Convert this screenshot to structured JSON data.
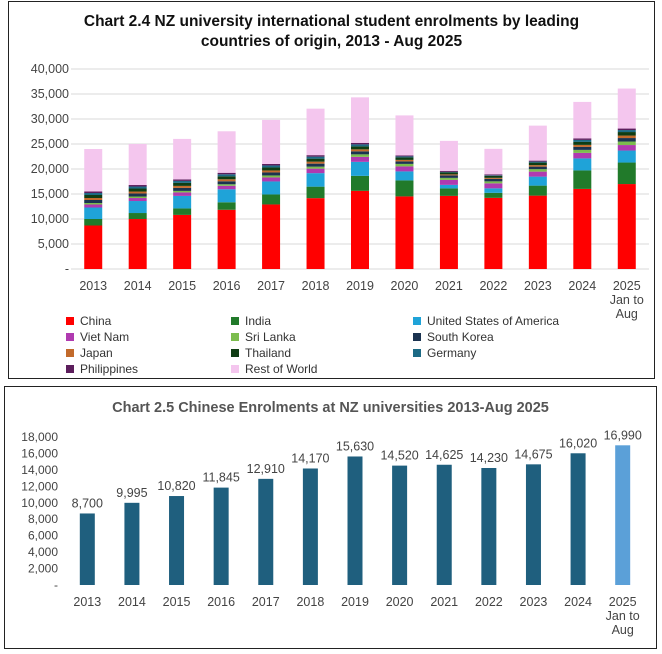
{
  "chart_data": [
    {
      "type": "bar",
      "stacked": true,
      "title_line1": "Chart 2.4  NZ university international student enrolments by leading",
      "title_line2": "countries of origin, 2013 - Aug 2025",
      "categories": [
        "2013",
        "2014",
        "2015",
        "2016",
        "2017",
        "2018",
        "2019",
        "2020",
        "2021",
        "2022",
        "2023",
        "2024",
        "2025\nJan to\nAug"
      ],
      "ylim": [
        0,
        40000
      ],
      "yticks": [
        "-",
        "5,000",
        "10,000",
        "15,000",
        "20,000",
        "25,000",
        "30,000",
        "35,000",
        "40,000"
      ],
      "grid": true,
      "legend_position": "bottom",
      "series": [
        {
          "name": "China",
          "color": "#ff0000",
          "values": [
            8700,
            9995,
            10820,
            11845,
            12910,
            14170,
            15630,
            14520,
            14625,
            14230,
            14675,
            16020,
            16990
          ]
        },
        {
          "name": "India",
          "color": "#217a2a",
          "values": [
            1300,
            1200,
            1300,
            1500,
            2000,
            2300,
            3000,
            3200,
            1500,
            1000,
            2000,
            3700,
            4300
          ]
        },
        {
          "name": "United States of America",
          "color": "#1fa3d8",
          "values": [
            2300,
            2400,
            2500,
            2600,
            2600,
            2700,
            2800,
            1800,
            700,
            900,
            1800,
            2400,
            2400
          ]
        },
        {
          "name": "Viet Nam",
          "color": "#b03ab0",
          "values": [
            600,
            600,
            700,
            700,
            800,
            900,
            1000,
            1000,
            1000,
            1000,
            1000,
            1100,
            1100
          ]
        },
        {
          "name": "Sri Lanka",
          "color": "#7cbd4e",
          "values": [
            300,
            300,
            300,
            300,
            400,
            400,
            500,
            500,
            400,
            400,
            500,
            600,
            700
          ]
        },
        {
          "name": "South Korea",
          "color": "#1b3350",
          "values": [
            600,
            600,
            600,
            600,
            600,
            600,
            600,
            500,
            500,
            500,
            500,
            600,
            700
          ]
        },
        {
          "name": "Japan",
          "color": "#c26a2b",
          "values": [
            400,
            400,
            400,
            400,
            400,
            400,
            400,
            300,
            200,
            200,
            300,
            400,
            500
          ]
        },
        {
          "name": "Thailand",
          "color": "#0f3d14",
          "values": [
            600,
            600,
            600,
            600,
            600,
            600,
            600,
            500,
            400,
            400,
            500,
            600,
            700
          ]
        },
        {
          "name": "Germany",
          "color": "#1c6a85",
          "values": [
            400,
            400,
            400,
            400,
            400,
            400,
            400,
            200,
            100,
            100,
            200,
            400,
            400
          ]
        },
        {
          "name": "Philippines",
          "color": "#5c1e5c",
          "values": [
            300,
            300,
            300,
            300,
            300,
            300,
            300,
            200,
            200,
            200,
            200,
            300,
            300
          ]
        },
        {
          "name": "Rest of World",
          "color": "#f4c6ee",
          "values": [
            8500,
            8200,
            8100,
            8300,
            8800,
            9300,
            9100,
            8000,
            6000,
            5100,
            7000,
            7300,
            8000
          ]
        }
      ]
    },
    {
      "type": "bar",
      "title": "Chart 2.5  Chinese Enrolments at NZ universities 2013-Aug 2025",
      "categories": [
        "2013",
        "2014",
        "2015",
        "2016",
        "2017",
        "2018",
        "2019",
        "2020",
        "2021",
        "2022",
        "2023",
        "2024",
        "2025\nJan to\nAug"
      ],
      "values": [
        8700,
        9995,
        10820,
        11845,
        12910,
        14170,
        15630,
        14520,
        14625,
        14230,
        14675,
        16020,
        16990
      ],
      "labels": [
        "8,700",
        "9,995",
        "10,820",
        "11,845",
        "12,910",
        "14,170",
        "15,630",
        "14,520",
        "14,625",
        "14,230",
        "14,675",
        "16,020",
        "16,990"
      ],
      "ylim": [
        0,
        18000
      ],
      "yticks": [
        "-",
        "2,000",
        "4,000",
        "6,000",
        "8,000",
        "10,000",
        "12,000",
        "14,000",
        "16,000",
        "18,000"
      ],
      "bar_color": "#1f5f7e",
      "highlight_color": "#5ba0d8",
      "highlight_index": 12
    }
  ]
}
